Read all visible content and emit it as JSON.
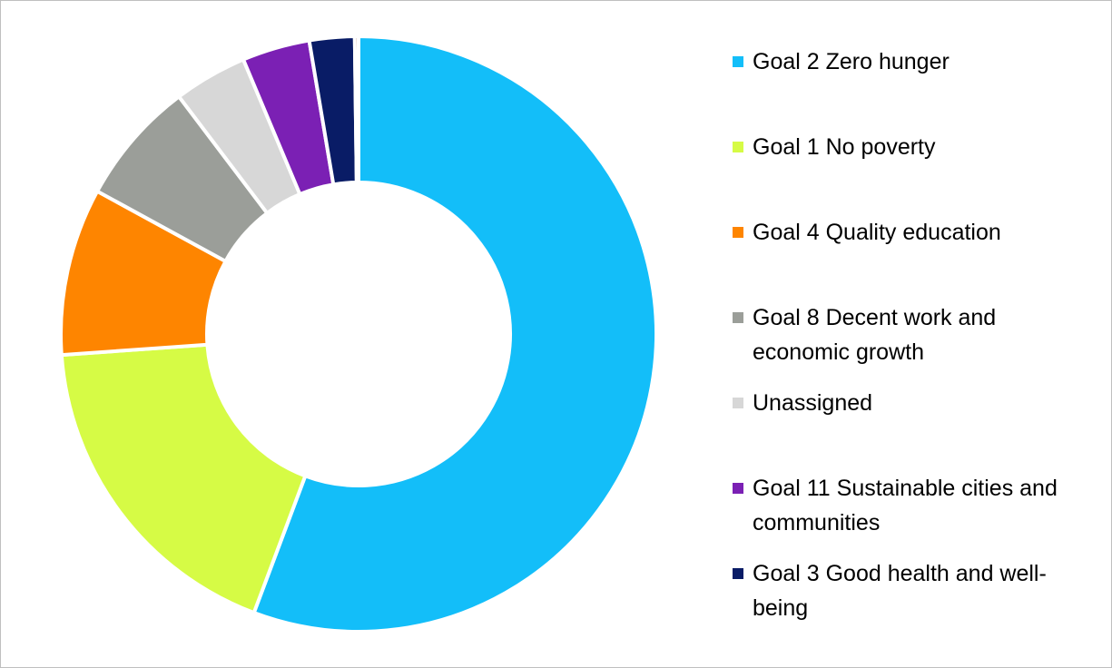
{
  "chart_data": {
    "type": "pie",
    "variant": "donut",
    "title": "",
    "legend_position": "right",
    "unit": "percent",
    "slices": [
      {
        "label": "Goal 2 Zero hunger",
        "value": 54.6,
        "color": "#13bef9"
      },
      {
        "label": "Goal 1 No poverty",
        "value": 17.8,
        "color": "#d6fb45"
      },
      {
        "label": "Goal 4 Quality education",
        "value": 8.9,
        "color": "#fe8500"
      },
      {
        "label": "Goal 8 Decent work and economic growth",
        "value": 6.6,
        "color": "#9b9e99"
      },
      {
        "label": "Unassigned",
        "value": 3.9,
        "color": "#d7d7d7"
      },
      {
        "label": "Goal 11 Sustainable cities and communities",
        "value": 3.6,
        "color": "#7b20b4"
      },
      {
        "label": "Goal 3 Good health and well-being",
        "value": 2.4,
        "color": "#091c66"
      },
      {
        "value": 0.2,
        "color": "#8b3a1a"
      }
    ]
  }
}
